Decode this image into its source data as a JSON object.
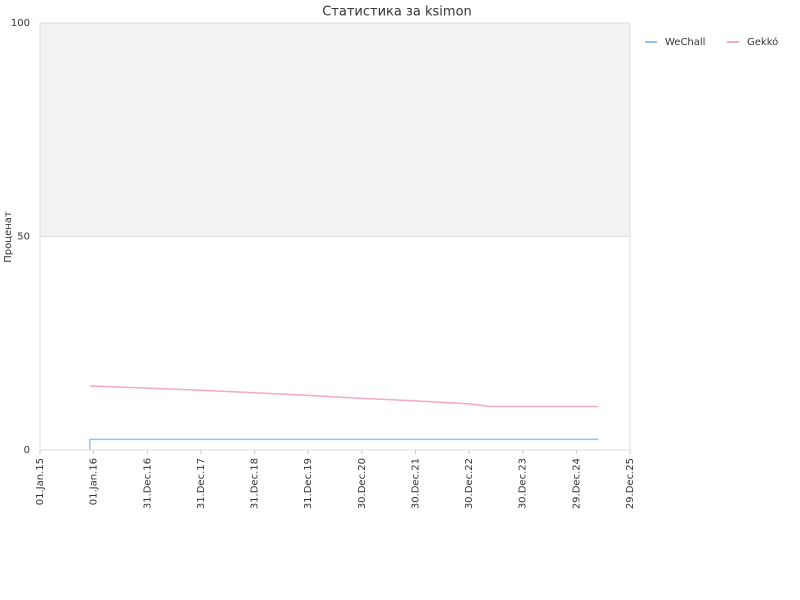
{
  "chart_data": {
    "type": "line",
    "title": "Статистика за ksimon",
    "y_label": "Проценат",
    "xlim": [
      0,
      11
    ],
    "xticks": [
      {
        "value": 0,
        "label": "01.Jan.15"
      },
      {
        "value": 1,
        "label": "01.Jan.16"
      },
      {
        "value": 2,
        "label": "31.Dec.16"
      },
      {
        "value": 3,
        "label": "31.Dec.17"
      },
      {
        "value": 4,
        "label": "31.Dec.18"
      },
      {
        "value": 5,
        "label": "31.Dec.19"
      },
      {
        "value": 6,
        "label": "30.Dec.20"
      },
      {
        "value": 7,
        "label": "30.Dec.21"
      },
      {
        "value": 8,
        "label": "30.Dec.22"
      },
      {
        "value": 9,
        "label": "30.Dec.23"
      },
      {
        "value": 10,
        "label": "29.Dec.24"
      },
      {
        "value": 11,
        "label": "29.Dec.25"
      }
    ],
    "ylim": [
      0,
      100
    ],
    "yticks": [
      0,
      50,
      100
    ],
    "grid": true,
    "bands": [
      {
        "from": 50,
        "to": 100,
        "color": "#f2f2f2"
      }
    ],
    "legend": "top-right",
    "series": [
      {
        "name": "WeChall",
        "color": "#8ec6f0",
        "x": [
          0.93,
          0.93,
          10.41
        ],
        "values": [
          0,
          2.5,
          2.5
        ]
      },
      {
        "name": "Gekkó",
        "color": "#f4a7c8",
        "x": [
          0.93,
          2,
          3,
          4,
          5,
          6,
          7,
          8,
          8.4,
          10.41
        ],
        "values": [
          15,
          14.5,
          14,
          13.4,
          12.8,
          12.1,
          11.5,
          10.8,
          10.2,
          10.2
        ]
      }
    ]
  }
}
